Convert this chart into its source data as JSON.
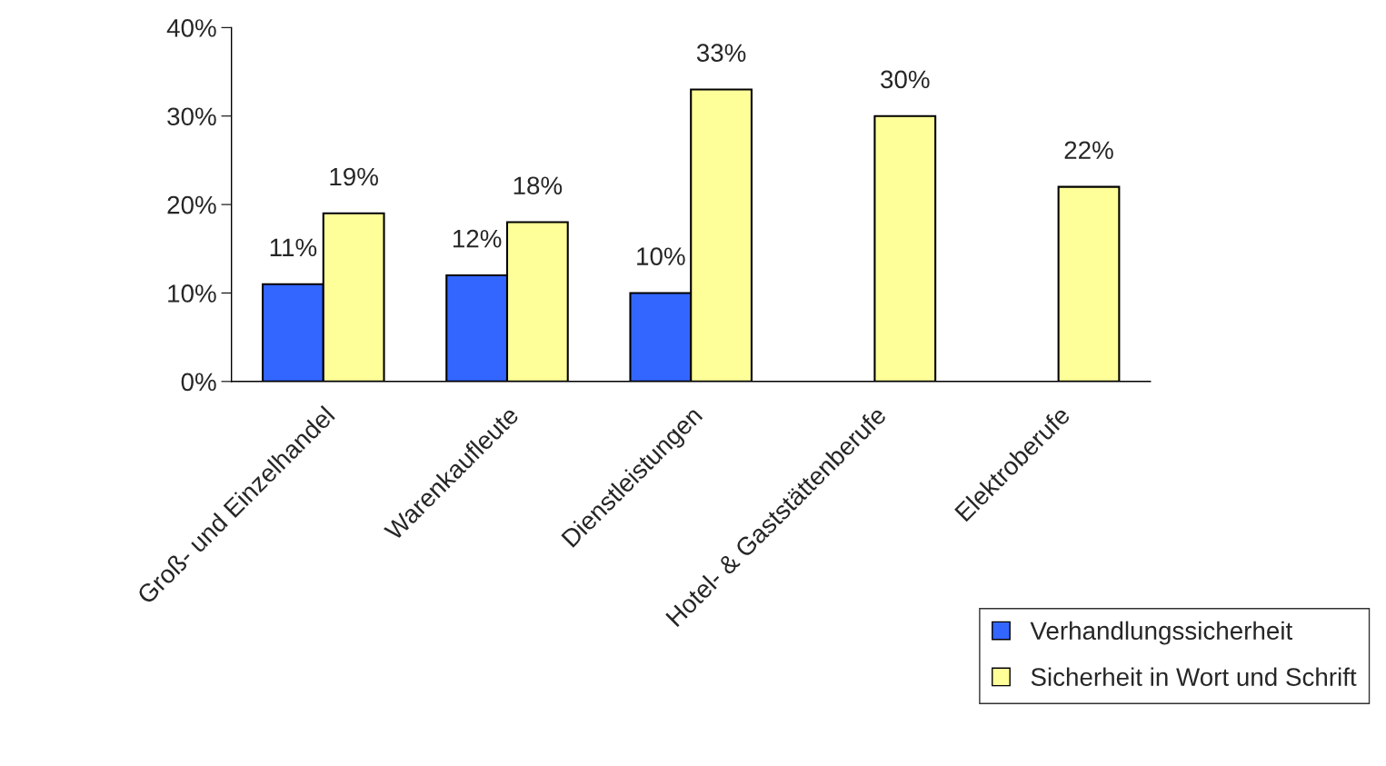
{
  "chart_data": {
    "type": "bar",
    "categories": [
      "Groß- und Einzelhandel",
      "Warenkaufleute",
      "Dienstleistungen",
      "Hotel- & Gaststättenberufe",
      "Elektroberufe"
    ],
    "series": [
      {
        "name": "Verhandlungssicherheit",
        "color": "#3366ff",
        "values": [
          11,
          12,
          10,
          null,
          null
        ],
        "value_labels": [
          "11%",
          "12%",
          "10%",
          null,
          null
        ]
      },
      {
        "name": "Sicherheit in Wort und Schrift",
        "color": "#ffff99",
        "values": [
          19,
          18,
          33,
          30,
          22
        ],
        "value_labels": [
          "19%",
          "18%",
          "33%",
          "30%",
          "22%"
        ]
      }
    ],
    "ylim": [
      0,
      40
    ],
    "yticks": [
      {
        "value": 0,
        "label": "0%"
      },
      {
        "value": 10,
        "label": "10%"
      },
      {
        "value": 20,
        "label": "20%"
      },
      {
        "value": 30,
        "label": "30%"
      },
      {
        "value": 40,
        "label": "40%"
      }
    ],
    "grid": false,
    "legend": "bottom right"
  }
}
